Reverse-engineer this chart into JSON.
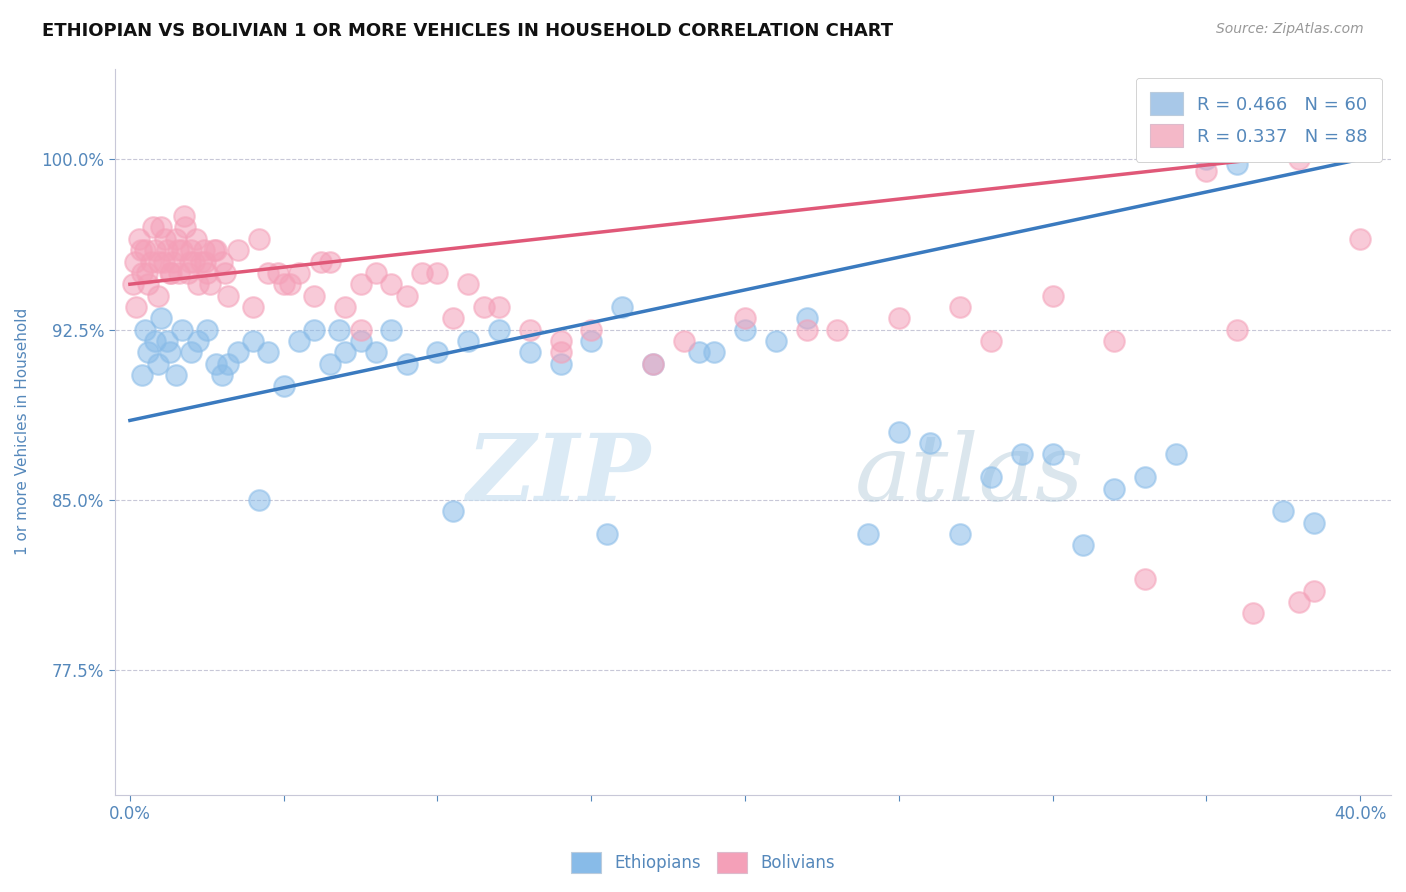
{
  "title": "ETHIOPIAN VS BOLIVIAN 1 OR MORE VEHICLES IN HOUSEHOLD CORRELATION CHART",
  "source": "Source: ZipAtlas.com",
  "ylabel": "1 or more Vehicles in Household",
  "xlim": [
    -0.5,
    41.0
  ],
  "ylim": [
    72.0,
    104.0
  ],
  "yticks": [
    77.5,
    85.0,
    92.5,
    100.0
  ],
  "ytick_labels": [
    "77.5%",
    "85.0%",
    "92.5%",
    "100.0%"
  ],
  "xtick_positions": [
    0.0,
    5.0,
    10.0,
    15.0,
    20.0,
    25.0,
    30.0,
    35.0,
    40.0
  ],
  "xtick_labels": [
    "0.0%",
    "",
    "",
    "",
    "",
    "",
    "",
    "",
    "40.0%"
  ],
  "legend_blue_label": "R = 0.466   N = 60",
  "legend_pink_label": "R = 0.337   N = 88",
  "legend_blue_color": "#a8c8e8",
  "legend_pink_color": "#f4b8c8",
  "watermark_zip": "ZIP",
  "watermark_atlas": "atlas",
  "blue_scatter_color": "#88bbe8",
  "pink_scatter_color": "#f4a0b8",
  "blue_line_color": "#3a7abf",
  "pink_line_color": "#e05878",
  "axis_label_color": "#5588bb",
  "tick_label_color": "#5588bb",
  "blue_line_x0": 0.0,
  "blue_line_y0": 88.5,
  "blue_line_x1": 40.0,
  "blue_line_y1": 100.0,
  "pink_line_x0": 0.0,
  "pink_line_y0": 94.5,
  "pink_line_x1": 40.0,
  "pink_line_y1": 100.5,
  "blue_x": [
    0.4,
    0.5,
    0.6,
    0.8,
    0.9,
    1.0,
    1.2,
    1.3,
    1.5,
    1.7,
    2.0,
    2.2,
    2.5,
    2.8,
    3.0,
    3.5,
    4.0,
    4.5,
    5.0,
    5.5,
    6.0,
    6.5,
    7.0,
    7.5,
    8.0,
    8.5,
    9.0,
    10.0,
    11.0,
    12.0,
    13.0,
    14.0,
    15.0,
    16.0,
    17.0,
    18.5,
    20.0,
    22.0,
    25.0,
    26.0,
    28.0,
    29.0,
    30.0,
    32.0,
    33.0,
    34.0,
    35.0,
    36.0,
    37.5,
    38.5,
    3.2,
    4.2,
    6.8,
    10.5,
    15.5,
    19.0,
    21.0,
    24.0,
    27.0,
    31.0
  ],
  "blue_y": [
    90.5,
    92.5,
    91.5,
    92.0,
    91.0,
    93.0,
    92.0,
    91.5,
    90.5,
    92.5,
    91.5,
    92.0,
    92.5,
    91.0,
    90.5,
    91.5,
    92.0,
    91.5,
    90.0,
    92.0,
    92.5,
    91.0,
    91.5,
    92.0,
    91.5,
    92.5,
    91.0,
    91.5,
    92.0,
    92.5,
    91.5,
    91.0,
    92.0,
    93.5,
    91.0,
    91.5,
    92.5,
    93.0,
    88.0,
    87.5,
    86.0,
    87.0,
    87.0,
    85.5,
    86.0,
    87.0,
    100.0,
    99.8,
    84.5,
    84.0,
    91.0,
    85.0,
    92.5,
    84.5,
    83.5,
    91.5,
    92.0,
    83.5,
    83.5,
    83.0
  ],
  "pink_x": [
    0.1,
    0.2,
    0.3,
    0.4,
    0.5,
    0.6,
    0.7,
    0.8,
    0.9,
    1.0,
    1.1,
    1.2,
    1.3,
    1.4,
    1.5,
    1.6,
    1.7,
    1.8,
    1.9,
    2.0,
    2.1,
    2.2,
    2.3,
    2.4,
    2.5,
    2.6,
    2.8,
    3.0,
    3.2,
    3.5,
    4.0,
    4.5,
    5.0,
    5.5,
    6.0,
    6.5,
    7.0,
    7.5,
    8.0,
    9.0,
    10.0,
    11.0,
    12.0,
    13.0,
    14.0,
    0.15,
    0.35,
    0.55,
    0.75,
    0.95,
    1.15,
    1.35,
    1.55,
    1.75,
    1.95,
    2.15,
    2.45,
    2.75,
    3.1,
    4.2,
    5.2,
    6.2,
    8.5,
    9.5,
    11.5,
    15.0,
    18.0,
    22.0,
    25.0,
    30.0,
    35.0,
    38.0,
    4.8,
    7.5,
    10.5,
    14.0,
    17.0,
    20.0,
    23.0,
    27.0,
    32.0,
    36.0,
    40.0,
    28.0,
    33.0,
    38.0,
    36.5,
    38.5
  ],
  "pink_y": [
    94.5,
    93.5,
    96.5,
    95.0,
    96.0,
    94.5,
    95.5,
    96.0,
    94.0,
    97.0,
    95.5,
    96.0,
    95.0,
    95.5,
    96.5,
    95.0,
    96.0,
    97.0,
    95.0,
    96.0,
    95.5,
    94.5,
    95.5,
    96.0,
    95.0,
    94.5,
    96.0,
    95.5,
    94.0,
    96.0,
    93.5,
    95.0,
    94.5,
    95.0,
    94.0,
    95.5,
    93.5,
    94.5,
    95.0,
    94.0,
    95.0,
    94.5,
    93.5,
    92.5,
    92.0,
    95.5,
    96.0,
    95.0,
    97.0,
    95.5,
    96.5,
    95.0,
    96.0,
    97.5,
    95.5,
    96.5,
    95.5,
    96.0,
    95.0,
    96.5,
    94.5,
    95.5,
    94.5,
    95.0,
    93.5,
    92.5,
    92.0,
    92.5,
    93.0,
    94.0,
    99.5,
    100.0,
    95.0,
    92.5,
    93.0,
    91.5,
    91.0,
    93.0,
    92.5,
    93.5,
    92.0,
    92.5,
    96.5,
    92.0,
    81.5,
    80.5,
    80.0,
    81.0
  ]
}
